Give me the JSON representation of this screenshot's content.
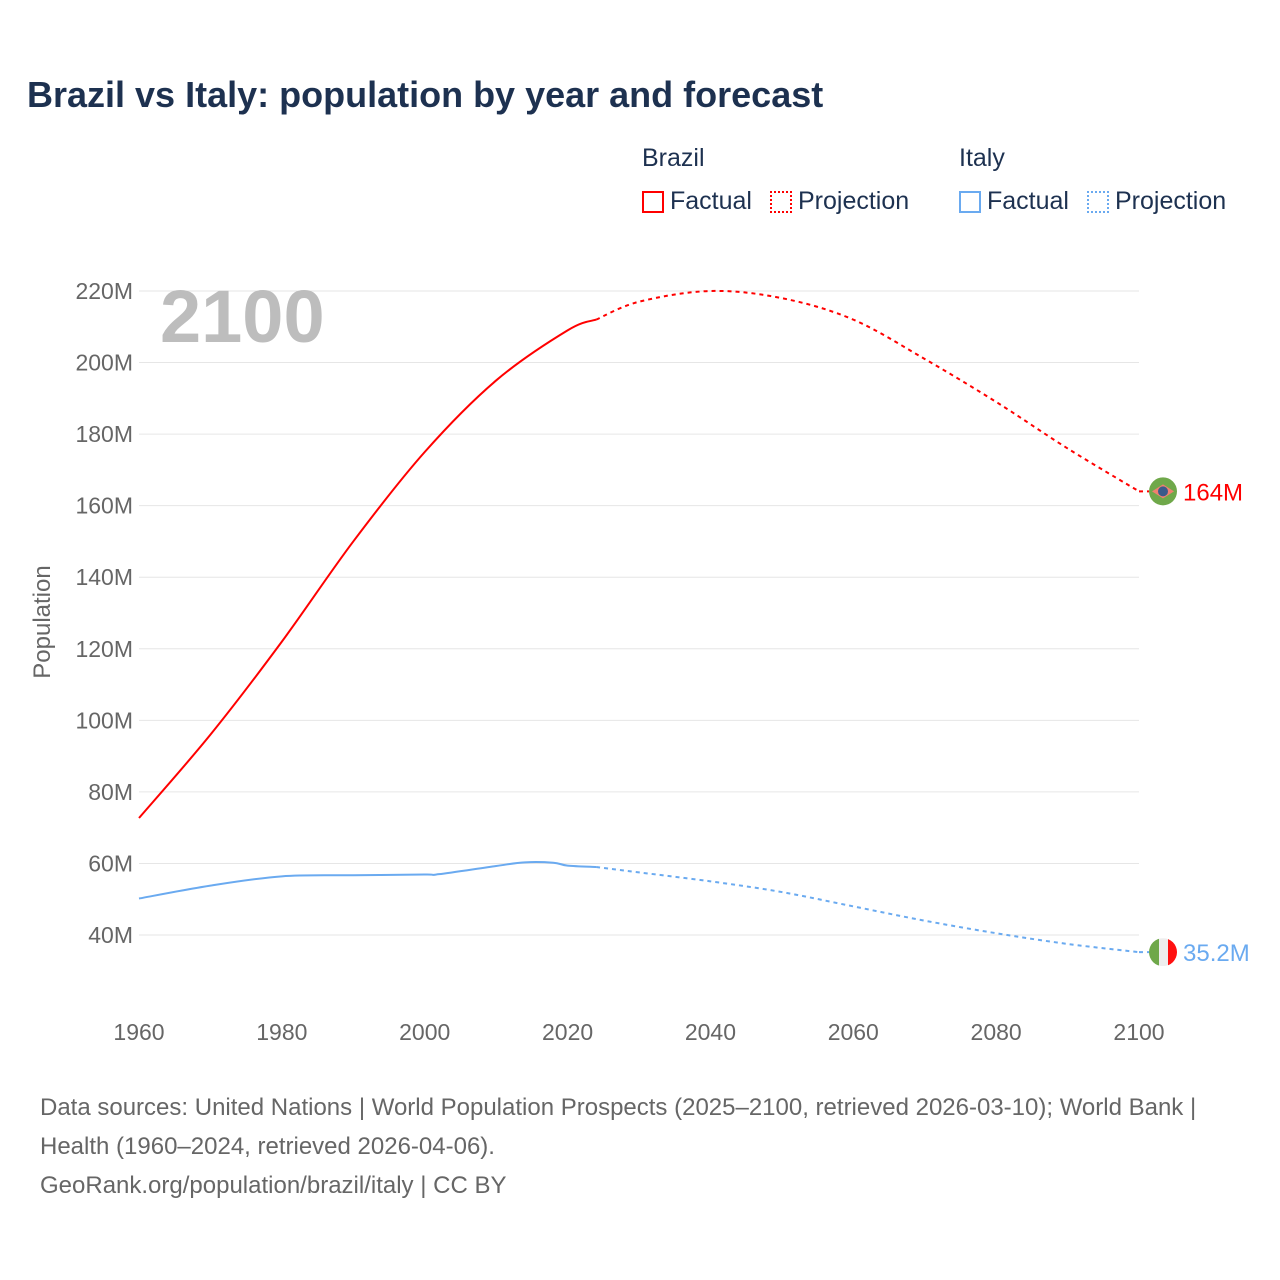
{
  "chart_data": {
    "type": "line",
    "title": "Brazil vs Italy: population by year and forecast",
    "ylabel": "Population",
    "xlabel": "",
    "year_label": "2100",
    "xlim": [
      1960,
      2100
    ],
    "ylim": [
      40,
      220
    ],
    "x_ticks": [
      "1960",
      "1980",
      "2000",
      "2020",
      "2040",
      "2060",
      "2080",
      "2100"
    ],
    "y_ticks": [
      "40M",
      "60M",
      "80M",
      "100M",
      "120M",
      "140M",
      "160M",
      "180M",
      "200M",
      "220M"
    ],
    "y_tick_values": [
      40,
      60,
      80,
      100,
      120,
      140,
      160,
      180,
      200,
      220
    ],
    "unit": "millions",
    "grid": true,
    "legend_placement": "top-right",
    "legend": {
      "groups": [
        {
          "title": "Brazil",
          "factual": "Factual",
          "projection": "Projection",
          "color": "#ff0000"
        },
        {
          "title": "Italy",
          "factual": "Factual",
          "projection": "Projection",
          "color": "#6aaaf0"
        }
      ]
    },
    "series": [
      {
        "name": "Brazil",
        "color": "#ff0000",
        "end_label": "164M",
        "flag": "brazil-flag",
        "factual": {
          "x": [
            1960,
            1970,
            1980,
            1990,
            2000,
            2010,
            2020,
            2024
          ],
          "y": [
            72.7,
            96,
            122,
            150,
            175,
            195,
            209,
            212
          ]
        },
        "projection": {
          "x": [
            2024,
            2030,
            2040,
            2050,
            2060,
            2070,
            2080,
            2090,
            2100
          ],
          "y": [
            212,
            217,
            220,
            218,
            212,
            201,
            189,
            176,
            164
          ]
        }
      },
      {
        "name": "Italy",
        "color": "#6aaaf0",
        "end_label": "35.2M",
        "flag": "italy-flag",
        "factual": {
          "x": [
            1960,
            1970,
            1980,
            1990,
            2000,
            2002,
            2010,
            2014,
            2018,
            2020,
            2024
          ],
          "y": [
            50.2,
            53.8,
            56.4,
            56.7,
            56.9,
            57.0,
            59.3,
            60.3,
            60.2,
            59.4,
            59.0
          ]
        },
        "projection": {
          "x": [
            2024,
            2030,
            2040,
            2050,
            2060,
            2070,
            2080,
            2090,
            2100
          ],
          "y": [
            59.0,
            57.5,
            55,
            52,
            48,
            44,
            40.5,
            37.5,
            35.2
          ]
        }
      }
    ]
  },
  "footer": {
    "sources": "Data sources: United Nations | World Population Prospects (2025–2100, retrieved 2026-03-10); World Bank | Health (1960–2024, retrieved 2026-04-06).",
    "credit": "GeoRank.org/population/brazil/italy | CC BY"
  }
}
